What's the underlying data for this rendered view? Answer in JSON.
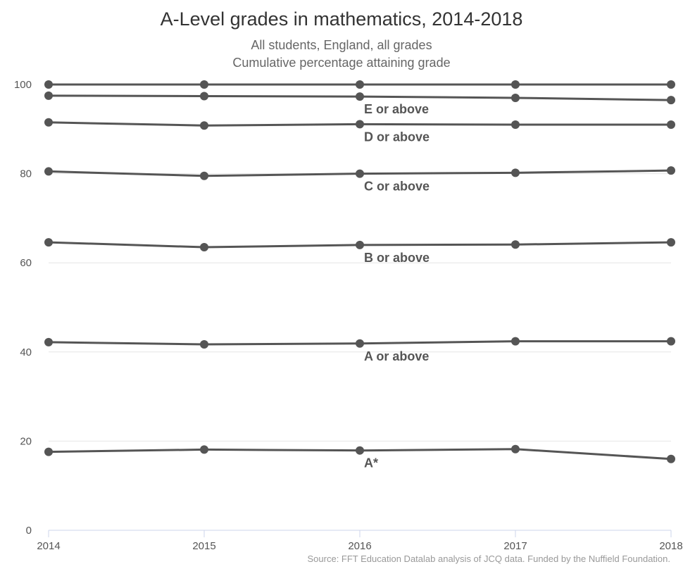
{
  "title": "A-Level grades in mathematics, 2014-2018",
  "subtitle": [
    "All students, England, all grades",
    "Cumulative percentage attaining grade"
  ],
  "source": "Source: FFT Education Datalab analysis of JCQ data. Funded by the Nuffield Foundation.",
  "colors": {
    "line": "#555555",
    "grid": "#e6e6e6",
    "axis": "#ccd6eb",
    "text": "#555555"
  },
  "chart_data": {
    "type": "line",
    "x": [
      "2014",
      "2015",
      "2016",
      "2017",
      "2018"
    ],
    "ylim": [
      0,
      100
    ],
    "yticks": [
      "0",
      "20",
      "40",
      "60",
      "80",
      "100"
    ],
    "series": [
      {
        "name": "",
        "values": [
          100,
          100,
          100,
          100,
          100
        ]
      },
      {
        "name": "E or above",
        "values": [
          97.5,
          97.4,
          97.3,
          97.0,
          96.5
        ]
      },
      {
        "name": "D or above",
        "values": [
          91.5,
          90.8,
          91.1,
          91.0,
          91.0
        ]
      },
      {
        "name": "C or above",
        "values": [
          80.5,
          79.5,
          80.0,
          80.2,
          80.7
        ]
      },
      {
        "name": "B or above",
        "values": [
          64.6,
          63.5,
          64.0,
          64.1,
          64.6
        ]
      },
      {
        "name": "A or above",
        "values": [
          42.2,
          41.7,
          41.9,
          42.4,
          42.4
        ]
      },
      {
        "name": "A*",
        "values": [
          17.6,
          18.1,
          17.9,
          18.2,
          16.0
        ]
      }
    ],
    "grid": true
  }
}
